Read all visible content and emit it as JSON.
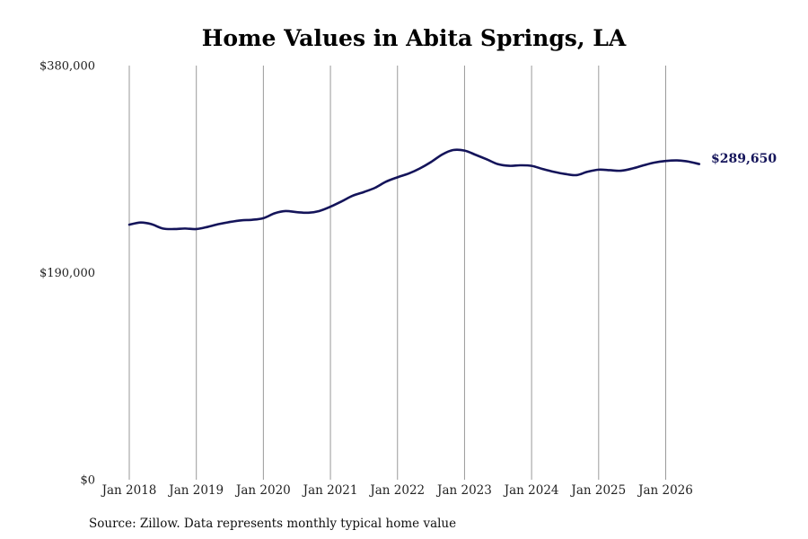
{
  "chart_data": {
    "type": "line",
    "title": "Home Values in Abita Springs, LA",
    "source": "Source: Zillow. Data represents monthly typical home value",
    "end_label": "$289,650",
    "xlabel": "",
    "ylabel": "",
    "ylim": [
      0,
      380000
    ],
    "y_ticks": [
      {
        "value": 0,
        "label": "$0"
      },
      {
        "value": 190000,
        "label": "$190,000"
      },
      {
        "value": 380000,
        "label": "$380,000"
      }
    ],
    "x_ticks": [
      {
        "value": 2018.0,
        "label": "Jan 2018"
      },
      {
        "value": 2019.0,
        "label": "Jan 2019"
      },
      {
        "value": 2020.0,
        "label": "Jan 2020"
      },
      {
        "value": 2021.0,
        "label": "Jan 2021"
      },
      {
        "value": 2022.0,
        "label": "Jan 2022"
      },
      {
        "value": 2023.0,
        "label": "Jan 2023"
      },
      {
        "value": 2024.0,
        "label": "Jan 2024"
      },
      {
        "value": 2025.0,
        "label": "Jan 2025"
      },
      {
        "value": 2026.0,
        "label": "Jan 2026"
      }
    ],
    "xlim": [
      2018.0,
      2026.5
    ],
    "grid": "vertical",
    "series": [
      {
        "color": "#14145a",
        "points": [
          [
            2018.0,
            234000
          ],
          [
            2018.17,
            236000
          ],
          [
            2018.33,
            234500
          ],
          [
            2018.5,
            230500
          ],
          [
            2018.67,
            230000
          ],
          [
            2018.83,
            230500
          ],
          [
            2019.0,
            230000
          ],
          [
            2019.17,
            232000
          ],
          [
            2019.33,
            234500
          ],
          [
            2019.5,
            236500
          ],
          [
            2019.67,
            238000
          ],
          [
            2019.83,
            238500
          ],
          [
            2020.0,
            240000
          ],
          [
            2020.17,
            244500
          ],
          [
            2020.33,
            246500
          ],
          [
            2020.5,
            245500
          ],
          [
            2020.67,
            245000
          ],
          [
            2020.83,
            246500
          ],
          [
            2021.0,
            250500
          ],
          [
            2021.17,
            255500
          ],
          [
            2021.33,
            260500
          ],
          [
            2021.5,
            264000
          ],
          [
            2021.67,
            268000
          ],
          [
            2021.83,
            273500
          ],
          [
            2022.0,
            277500
          ],
          [
            2022.17,
            281000
          ],
          [
            2022.33,
            285500
          ],
          [
            2022.5,
            291500
          ],
          [
            2022.67,
            298500
          ],
          [
            2022.83,
            302500
          ],
          [
            2023.0,
            302000
          ],
          [
            2023.17,
            298000
          ],
          [
            2023.33,
            294000
          ],
          [
            2023.5,
            289500
          ],
          [
            2023.67,
            288000
          ],
          [
            2023.83,
            288500
          ],
          [
            2024.0,
            288000
          ],
          [
            2024.17,
            285000
          ],
          [
            2024.33,
            282500
          ],
          [
            2024.5,
            280500
          ],
          [
            2024.67,
            279500
          ],
          [
            2024.83,
            282500
          ],
          [
            2025.0,
            284500
          ],
          [
            2025.17,
            284000
          ],
          [
            2025.33,
            283500
          ],
          [
            2025.5,
            285500
          ],
          [
            2025.67,
            288500
          ],
          [
            2025.83,
            291000
          ],
          [
            2026.0,
            292500
          ],
          [
            2026.17,
            293000
          ],
          [
            2026.33,
            292000
          ],
          [
            2026.5,
            289650
          ]
        ]
      }
    ]
  }
}
